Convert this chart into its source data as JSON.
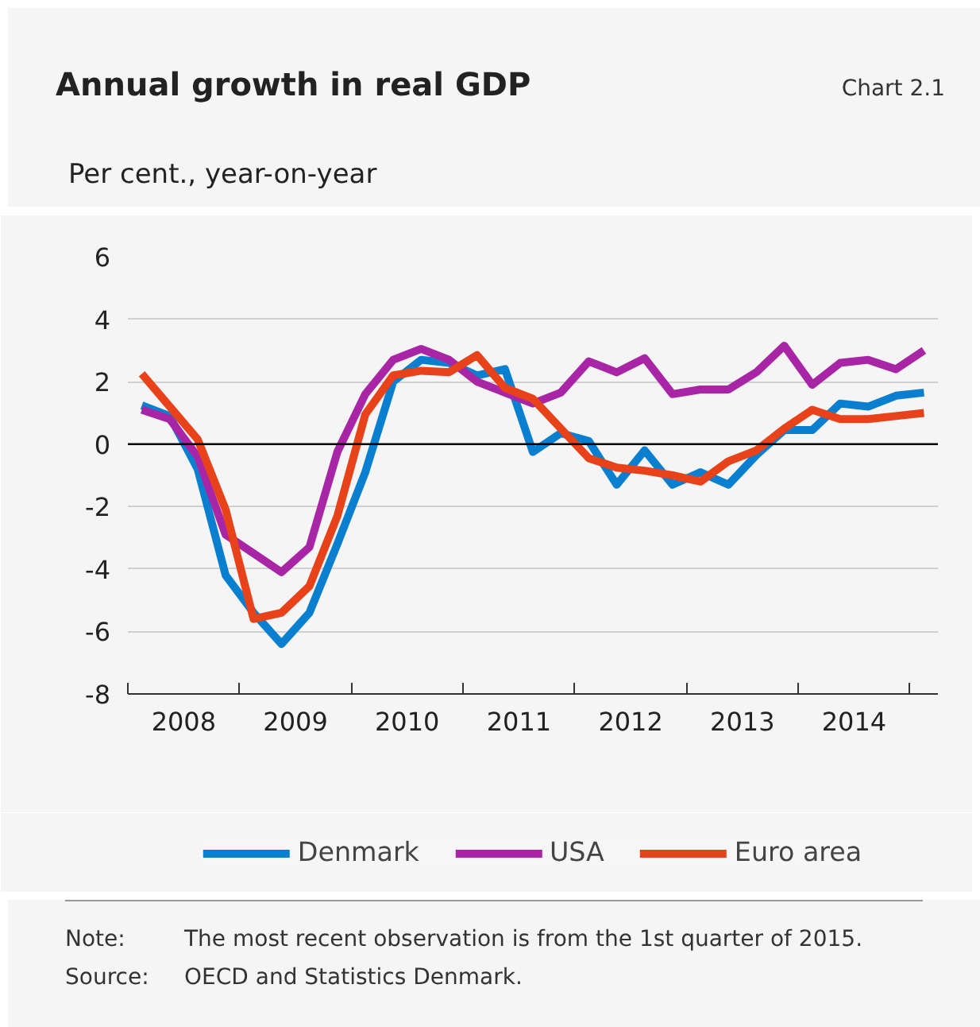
{
  "chart_data": {
    "type": "line",
    "title": "Annual growth in real GDP",
    "ylabel": "Per cent., year-on-year",
    "x": [
      2008.125,
      2008.375,
      2008.625,
      2008.875,
      2009.125,
      2009.375,
      2009.625,
      2009.875,
      2010.125,
      2010.375,
      2010.625,
      2010.875,
      2011.125,
      2011.375,
      2011.625,
      2011.875,
      2012.125,
      2012.375,
      2012.625,
      2012.875,
      2013.125,
      2013.375,
      2013.625,
      2013.875,
      2014.125,
      2014.375,
      2014.625,
      2014.875,
      2015.125
    ],
    "series": [
      {
        "name": "Denmark",
        "color": "#0a7fd0",
        "values": [
          1.24,
          0.9,
          -0.8,
          -4.2,
          -5.4,
          -6.4,
          -5.4,
          -3.2,
          -0.9,
          2.0,
          2.7,
          2.6,
          2.2,
          2.4,
          -0.25,
          0.35,
          0.1,
          -1.3,
          -0.2,
          -1.3,
          -0.9,
          -1.3,
          -0.35,
          0.45,
          0.45,
          1.3,
          1.2,
          1.55,
          1.65
        ]
      },
      {
        "name": "USA",
        "color": "#a826a6",
        "values": [
          1.1,
          0.8,
          -0.4,
          -2.9,
          -3.5,
          -4.1,
          -3.3,
          -0.25,
          1.6,
          2.7,
          3.05,
          2.7,
          2.0,
          1.65,
          1.3,
          1.65,
          2.65,
          2.3,
          2.75,
          1.6,
          1.75,
          1.75,
          2.3,
          3.15,
          1.9,
          2.6,
          2.7,
          2.4,
          3.0
        ]
      },
      {
        "name": "Euro area",
        "color": "#e8421a",
        "values": [
          2.25,
          1.2,
          0.15,
          -2.1,
          -5.6,
          -5.4,
          -4.55,
          -2.3,
          0.95,
          2.2,
          2.35,
          2.3,
          2.85,
          1.8,
          1.45,
          0.5,
          -0.45,
          -0.75,
          -0.85,
          -1.0,
          -1.2,
          -0.55,
          -0.2,
          0.5,
          1.1,
          0.8,
          0.8,
          0.9,
          1.0
        ]
      }
    ],
    "xlim": [
      2008,
      2015.25
    ],
    "xticks": [
      {
        "value": 2008,
        "label": null
      },
      {
        "value": 2008.5,
        "label": "2008"
      },
      {
        "value": 2009,
        "label": null
      },
      {
        "value": 2009.5,
        "label": "2009"
      },
      {
        "value": 2010,
        "label": null
      },
      {
        "value": 2010.5,
        "label": "2010"
      },
      {
        "value": 2011,
        "label": null
      },
      {
        "value": 2011.5,
        "label": "2011"
      },
      {
        "value": 2012,
        "label": null
      },
      {
        "value": 2012.5,
        "label": "2012"
      },
      {
        "value": 2013,
        "label": null
      },
      {
        "value": 2013.5,
        "label": "2013"
      },
      {
        "value": 2014,
        "label": null
      },
      {
        "value": 2014.5,
        "label": "2014"
      },
      {
        "value": 2015,
        "label": null
      }
    ],
    "ylim": [
      -8,
      6
    ],
    "yticks": [
      -8,
      -6,
      -4,
      -2,
      0,
      2,
      4,
      6
    ],
    "ref_lines": [
      {
        "axis": "y",
        "value": 0,
        "label": null,
        "color": "#000000"
      }
    ],
    "grid": "y",
    "legend": "bottom",
    "marker": "none",
    "line_style": "solid",
    "annotations": [
      "Chart 2.1",
      "Note: The most recent observation is from the 1st quarter of 2015.",
      "Source: OECD and Statistics Denmark."
    ]
  }
}
